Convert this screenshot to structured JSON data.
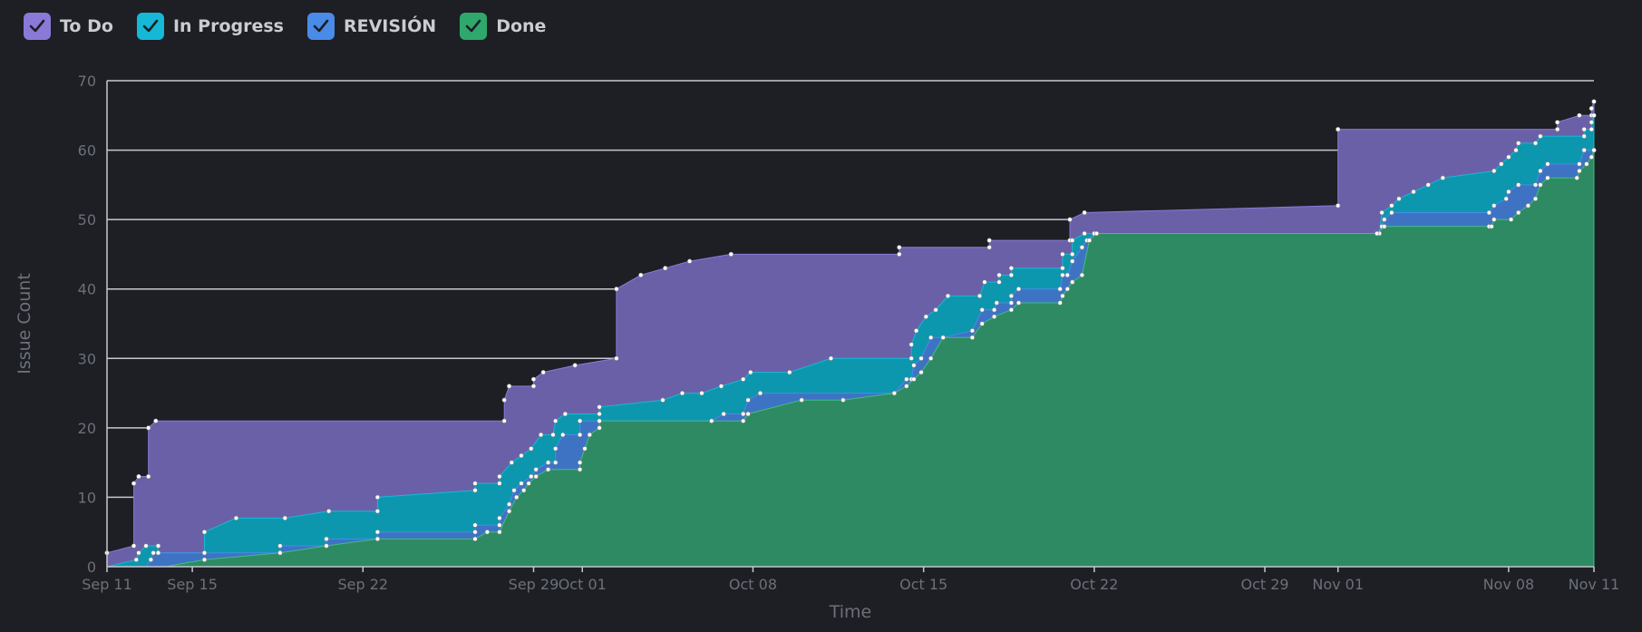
{
  "legend": [
    {
      "label": "To Do",
      "color": "#8b79d8",
      "checked": true
    },
    {
      "label": "In Progress",
      "color": "#16b8d8",
      "checked": true
    },
    {
      "label": "REVISIÓN",
      "color": "#4a8be8",
      "checked": true
    },
    {
      "label": "Done",
      "color": "#2fa86e",
      "checked": true
    }
  ],
  "chart_data": {
    "type": "area",
    "stacked": true,
    "xlabel": "Time",
    "ylabel": "Issue Count",
    "ylim": [
      0,
      70
    ],
    "y_ticks": [
      0,
      10,
      20,
      30,
      40,
      50,
      60,
      70
    ],
    "x_range_days": [
      0,
      61
    ],
    "x_ticks": [
      {
        "label": "Sep 11",
        "day": 0
      },
      {
        "label": "Sep 15",
        "day": 3.5
      },
      {
        "label": "Sep 22",
        "day": 10.5
      },
      {
        "label": "Sep 29",
        "day": 17.5
      },
      {
        "label": "Oct 01",
        "day": 19.5
      },
      {
        "label": "Oct 08",
        "day": 26.5
      },
      {
        "label": "Oct 15",
        "day": 33.5
      },
      {
        "label": "Oct 22",
        "day": 40.5
      },
      {
        "label": "Oct 29",
        "day": 47.5
      },
      {
        "label": "Nov 01",
        "day": 50.5
      },
      {
        "label": "Nov 08",
        "day": 57.5
      },
      {
        "label": "Nov 11",
        "day": 61
      }
    ],
    "grid": true,
    "colors": {
      "todo": "#6a60a8",
      "inprogress": "#0d97ae",
      "revision": "#3e73c4",
      "done": "#2e8a62"
    },
    "series": [
      {
        "name": "Total (To Do)",
        "points": [
          [
            0,
            0
          ],
          [
            0,
            2
          ],
          [
            1.1,
            3
          ],
          [
            1.1,
            12
          ],
          [
            1.3,
            13
          ],
          [
            1.7,
            13
          ],
          [
            1.7,
            20
          ],
          [
            2,
            21
          ],
          [
            16.3,
            21
          ],
          [
            16.3,
            24
          ],
          [
            16.5,
            26
          ],
          [
            17.5,
            26
          ],
          [
            17.5,
            27
          ],
          [
            17.9,
            28
          ],
          [
            19.2,
            29
          ],
          [
            20.9,
            30
          ],
          [
            20.9,
            40
          ],
          [
            21.9,
            42
          ],
          [
            22.9,
            43
          ],
          [
            23.9,
            44
          ],
          [
            25.6,
            45
          ],
          [
            32.5,
            45
          ],
          [
            32.5,
            46
          ],
          [
            36.2,
            46
          ],
          [
            36.2,
            47
          ],
          [
            39.5,
            47
          ],
          [
            39.5,
            50
          ],
          [
            40.1,
            51
          ],
          [
            50.5,
            52
          ],
          [
            50.5,
            63
          ],
          [
            59.5,
            63
          ],
          [
            59.5,
            64
          ],
          [
            60.4,
            65
          ],
          [
            60.9,
            65
          ],
          [
            60.9,
            66
          ],
          [
            61,
            67
          ]
        ]
      },
      {
        "name": "In Progress top",
        "points": [
          [
            0,
            0
          ],
          [
            1.2,
            1
          ],
          [
            1.3,
            2
          ],
          [
            1.6,
            3
          ],
          [
            2.1,
            3
          ],
          [
            2.1,
            2
          ],
          [
            4,
            2
          ],
          [
            4,
            5
          ],
          [
            5.3,
            7
          ],
          [
            7.3,
            7
          ],
          [
            9.1,
            8
          ],
          [
            11.1,
            8
          ],
          [
            11.1,
            10
          ],
          [
            15.1,
            11
          ],
          [
            15.1,
            12
          ],
          [
            16.1,
            12
          ],
          [
            16.1,
            13
          ],
          [
            16.6,
            15
          ],
          [
            17,
            16
          ],
          [
            17.4,
            17
          ],
          [
            17.8,
            19
          ],
          [
            18.3,
            19
          ],
          [
            18.4,
            21
          ],
          [
            18.8,
            22
          ],
          [
            20.2,
            22
          ],
          [
            20.2,
            23
          ],
          [
            22.8,
            24
          ],
          [
            23.6,
            25
          ],
          [
            24.4,
            25
          ],
          [
            25.2,
            26
          ],
          [
            26.1,
            27
          ],
          [
            26.4,
            28
          ],
          [
            28,
            28
          ],
          [
            29.7,
            30
          ],
          [
            33,
            30
          ],
          [
            33,
            32
          ],
          [
            33.2,
            34
          ],
          [
            33.6,
            36
          ],
          [
            34,
            37
          ],
          [
            34.5,
            39
          ],
          [
            35.8,
            39
          ],
          [
            36,
            41
          ],
          [
            36.6,
            41
          ],
          [
            36.6,
            42
          ],
          [
            37.1,
            42
          ],
          [
            37.1,
            43
          ],
          [
            39.2,
            43
          ],
          [
            39.2,
            45
          ],
          [
            39.6,
            45
          ],
          [
            39.6,
            47
          ],
          [
            40.1,
            48
          ],
          [
            40.5,
            48
          ],
          [
            52.2,
            48
          ],
          [
            52.3,
            51
          ],
          [
            52.7,
            52
          ],
          [
            53,
            53
          ],
          [
            53.6,
            54
          ],
          [
            54.2,
            55
          ],
          [
            54.8,
            56
          ],
          [
            56.9,
            57
          ],
          [
            57.2,
            58
          ],
          [
            57.5,
            59
          ],
          [
            57.8,
            60
          ],
          [
            57.9,
            61
          ],
          [
            58.6,
            61
          ],
          [
            58.8,
            62
          ],
          [
            60.6,
            62
          ],
          [
            60.6,
            63
          ],
          [
            60.9,
            63
          ],
          [
            60.9,
            64
          ],
          [
            61,
            65
          ]
        ]
      },
      {
        "name": "REVISIÓN top",
        "points": [
          [
            0,
            0
          ],
          [
            1.6,
            0
          ],
          [
            1.8,
            1
          ],
          [
            1.9,
            2
          ],
          [
            2.1,
            2
          ],
          [
            4,
            2
          ],
          [
            4,
            2
          ],
          [
            7.1,
            2
          ],
          [
            7.1,
            3
          ],
          [
            9,
            3
          ],
          [
            9,
            4
          ],
          [
            11.1,
            4
          ],
          [
            11.1,
            5
          ],
          [
            15.1,
            5
          ],
          [
            15.1,
            6
          ],
          [
            16.1,
            6
          ],
          [
            16.1,
            7
          ],
          [
            16.5,
            9
          ],
          [
            16.7,
            11
          ],
          [
            17,
            12
          ],
          [
            17.4,
            13
          ],
          [
            17.6,
            14
          ],
          [
            18.1,
            15
          ],
          [
            18.4,
            15
          ],
          [
            18.4,
            17
          ],
          [
            18.7,
            19
          ],
          [
            19.4,
            19
          ],
          [
            19.4,
            21
          ],
          [
            20.2,
            21
          ],
          [
            24.8,
            21
          ],
          [
            25.3,
            22
          ],
          [
            26.1,
            22
          ],
          [
            26.3,
            24
          ],
          [
            26.8,
            25
          ],
          [
            32.3,
            25
          ],
          [
            32.8,
            27
          ],
          [
            33,
            27
          ],
          [
            33.1,
            29
          ],
          [
            33.4,
            30
          ],
          [
            33.8,
            33
          ],
          [
            34.3,
            33
          ],
          [
            35.5,
            34
          ],
          [
            35.9,
            37
          ],
          [
            36.4,
            37
          ],
          [
            36.5,
            38
          ],
          [
            37.1,
            38
          ],
          [
            37.1,
            39
          ],
          [
            37.4,
            40
          ],
          [
            39.1,
            40
          ],
          [
            39.2,
            42
          ],
          [
            39.4,
            42
          ],
          [
            39.6,
            44
          ],
          [
            40,
            46
          ],
          [
            40.2,
            47
          ],
          [
            40.5,
            48
          ],
          [
            52.1,
            48
          ],
          [
            52.3,
            49
          ],
          [
            52.4,
            50
          ],
          [
            52.7,
            51
          ],
          [
            56.7,
            51
          ],
          [
            56.9,
            52
          ],
          [
            57.4,
            53
          ],
          [
            57.5,
            54
          ],
          [
            57.9,
            55
          ],
          [
            58.6,
            55
          ],
          [
            58.8,
            57
          ],
          [
            59.1,
            58
          ],
          [
            60.4,
            58
          ],
          [
            60.6,
            60
          ],
          [
            61,
            60
          ]
        ]
      },
      {
        "name": "Done top",
        "points": [
          [
            0,
            0
          ],
          [
            2.4,
            0
          ],
          [
            4,
            1
          ],
          [
            7.1,
            2
          ],
          [
            9,
            3
          ],
          [
            11.1,
            4
          ],
          [
            15.1,
            4
          ],
          [
            15.6,
            5
          ],
          [
            16.1,
            5
          ],
          [
            16.5,
            8
          ],
          [
            16.8,
            10
          ],
          [
            17.1,
            11
          ],
          [
            17.3,
            12
          ],
          [
            17.6,
            13
          ],
          [
            18.1,
            14
          ],
          [
            19.4,
            14
          ],
          [
            19.4,
            15
          ],
          [
            19.6,
            17
          ],
          [
            19.8,
            19
          ],
          [
            20.2,
            20
          ],
          [
            20.2,
            21
          ],
          [
            24.8,
            21
          ],
          [
            26.1,
            21
          ],
          [
            26.3,
            22
          ],
          [
            28.5,
            24
          ],
          [
            30.2,
            24
          ],
          [
            32.3,
            25
          ],
          [
            32.8,
            26
          ],
          [
            33.1,
            27
          ],
          [
            33.4,
            28
          ],
          [
            33.8,
            30
          ],
          [
            34.3,
            33
          ],
          [
            35.5,
            33
          ],
          [
            35.9,
            35
          ],
          [
            36.4,
            36
          ],
          [
            37.1,
            37
          ],
          [
            37.4,
            38
          ],
          [
            39.1,
            38
          ],
          [
            39.2,
            39
          ],
          [
            39.4,
            40
          ],
          [
            39.6,
            41
          ],
          [
            40,
            42
          ],
          [
            40.3,
            47
          ],
          [
            40.6,
            48
          ],
          [
            52.1,
            48
          ],
          [
            52.4,
            49
          ],
          [
            56.7,
            49
          ],
          [
            56.8,
            49
          ],
          [
            56.9,
            50
          ],
          [
            57.6,
            50
          ],
          [
            57.9,
            51
          ],
          [
            58.3,
            52
          ],
          [
            58.6,
            53
          ],
          [
            58.8,
            55
          ],
          [
            59.1,
            56
          ],
          [
            60.3,
            56
          ],
          [
            60.4,
            57
          ],
          [
            60.7,
            58
          ],
          [
            60.9,
            59
          ],
          [
            61,
            60
          ]
        ]
      }
    ]
  },
  "axis": {
    "ylabel": "Issue Count",
    "xlabel": "Time"
  }
}
